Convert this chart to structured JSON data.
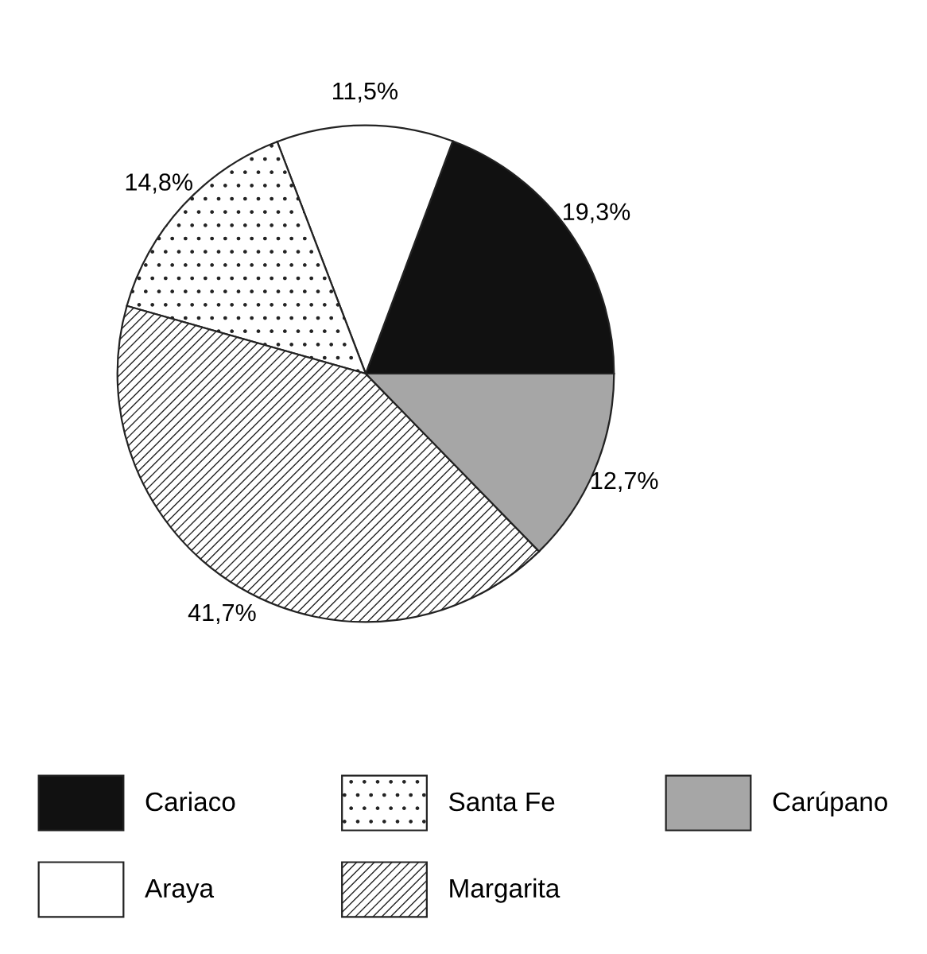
{
  "chart_data": {
    "type": "pie",
    "categories": [
      "Cariaco",
      "Araya",
      "Santa Fe",
      "Margarita",
      "Carúpano"
    ],
    "values": [
      19.3,
      11.5,
      14.8,
      41.7,
      12.7
    ],
    "colors": [
      "#111111",
      "#ffffff",
      "#ffffff",
      "#ffffff",
      "#a6a6a6"
    ],
    "value_labels": [
      "19,3%",
      "11,5%",
      "14,8%",
      "41,7%",
      "12,7%"
    ],
    "legend": "bottom"
  }
}
